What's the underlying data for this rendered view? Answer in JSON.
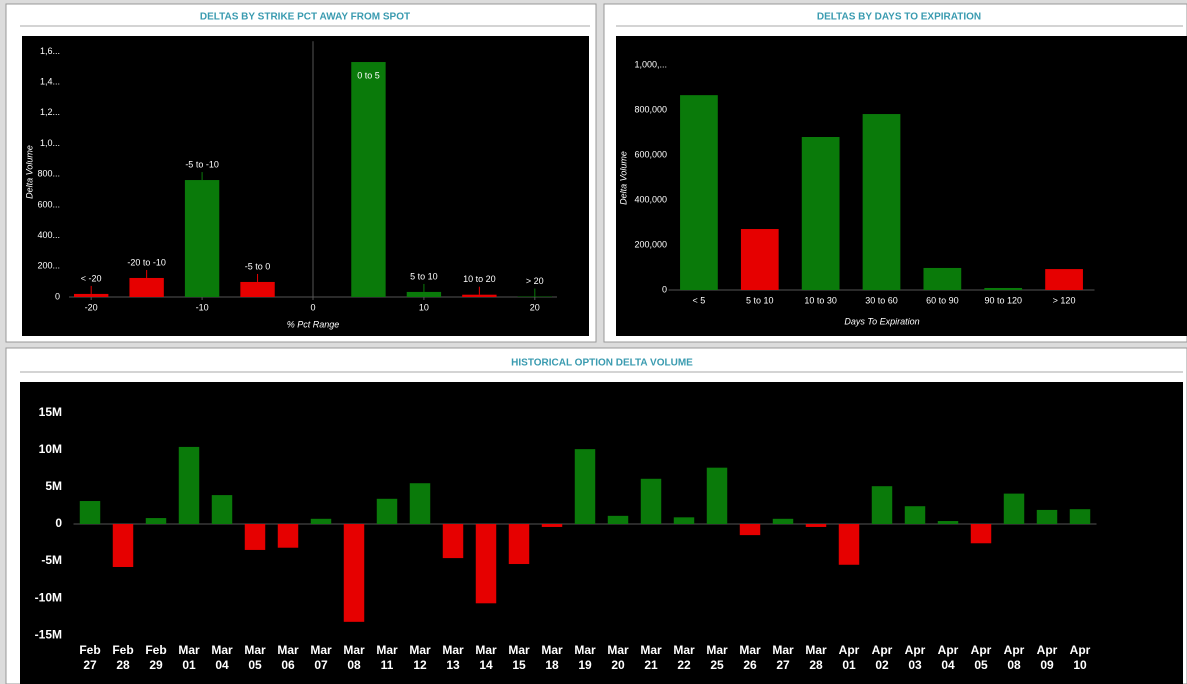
{
  "chart_data": [
    {
      "type": "bar",
      "title": "DELTAS BY STRIKE PCT AWAY FROM SPOT",
      "x": [
        -20,
        -15,
        -10,
        -5,
        5,
        10,
        15,
        20
      ],
      "categories": [
        "< -20",
        "-20 to -10",
        "-5 to -10",
        "-5 to 0",
        "0 to 5",
        "5 to 10",
        "10 to 20",
        "> 20"
      ],
      "values": [
        20,
        124,
        762,
        98,
        1531,
        33,
        15,
        3
      ],
      "colors": [
        "#e60000",
        "#e60000",
        "#0a7a0a",
        "#e60000",
        "#0a7a0a",
        "#0a7a0a",
        "#e60000",
        "#0a7a0a"
      ],
      "xlim": [
        -22,
        22
      ],
      "xticks": [
        -20,
        -10,
        0,
        10,
        20
      ],
      "ylim": [
        0,
        1640
      ],
      "yticks": [
        0,
        {
          "value": 200,
          "label": "200..."
        },
        {
          "value": 400,
          "label": "400..."
        },
        {
          "value": 600,
          "label": "600..."
        },
        {
          "value": 800,
          "label": "800..."
        },
        {
          "value": 1000,
          "label": "1,0..."
        },
        {
          "value": 1200,
          "label": "1,2..."
        },
        {
          "value": 1400,
          "label": "1,4..."
        },
        {
          "value": 1600,
          "label": "1,6..."
        }
      ],
      "x_label": "% Pct Range",
      "y_label": "Delta Volume"
    },
    {
      "type": "bar",
      "title": "DELTAS BY DAYS TO EXPIRATION",
      "categories": [
        "< 5",
        "5 to 10",
        "10 to 30",
        "30 to 60",
        "60 to 90",
        "90 to 120",
        "> 120"
      ],
      "values": [
        866000,
        271000,
        680000,
        782000,
        98000,
        9000,
        93000
      ],
      "colors": [
        "#0a7a0a",
        "#e60000",
        "#0a7a0a",
        "#0a7a0a",
        "#0a7a0a",
        "#0a7a0a",
        "#e60000"
      ],
      "ylim": [
        0,
        1050000
      ],
      "yticks": [
        0,
        {
          "value": 200000,
          "label": "200,000"
        },
        {
          "value": 400000,
          "label": "400,000"
        },
        {
          "value": 600000,
          "label": "600,000"
        },
        {
          "value": 800000,
          "label": "800,000"
        },
        {
          "value": 1000000,
          "label": "1,000,..."
        }
      ],
      "x_label": "Days To Expiration",
      "y_label": "Delta Volume"
    },
    {
      "type": "bar",
      "title": "HISTORICAL OPTION DELTA VOLUME",
      "categories": [
        "Feb 27",
        "Feb 28",
        "Feb 29",
        "Mar 01",
        "Mar 04",
        "Mar 05",
        "Mar 06",
        "Mar 07",
        "Mar 08",
        "Mar 11",
        "Mar 12",
        "Mar 13",
        "Mar 14",
        "Mar 15",
        "Mar 18",
        "Mar 19",
        "Mar 20",
        "Mar 21",
        "Mar 22",
        "Mar 25",
        "Mar 26",
        "Mar 27",
        "Mar 28",
        "Apr 01",
        "Apr 02",
        "Apr 03",
        "Apr 04",
        "Apr 05",
        "Apr 08",
        "Apr 09",
        "Apr 10"
      ],
      "values": [
        3100000,
        -5800000,
        800000,
        10400000,
        3900000,
        -3500000,
        -3200000,
        700000,
        -13200000,
        3400000,
        5500000,
        -4600000,
        -10700000,
        -5400000,
        -400000,
        10100000,
        1100000,
        6100000,
        900000,
        7600000,
        -1500000,
        700000,
        -400000,
        -5500000,
        5100000,
        2400000,
        400000,
        -2600000,
        4100000,
        1900000,
        2000000
      ],
      "positive_color": "#0a7a0a",
      "negative_color": "#e60000",
      "ylim": [
        -17000000,
        17000000
      ],
      "yticks": [
        {
          "value": -15000000,
          "label": "-15M"
        },
        {
          "value": -10000000,
          "label": "-10M"
        },
        {
          "value": -5000000,
          "label": "-5M"
        },
        0,
        {
          "value": 5000000,
          "label": "5M"
        },
        {
          "value": 10000000,
          "label": "10M"
        },
        {
          "value": 15000000,
          "label": "15M"
        }
      ]
    }
  ]
}
